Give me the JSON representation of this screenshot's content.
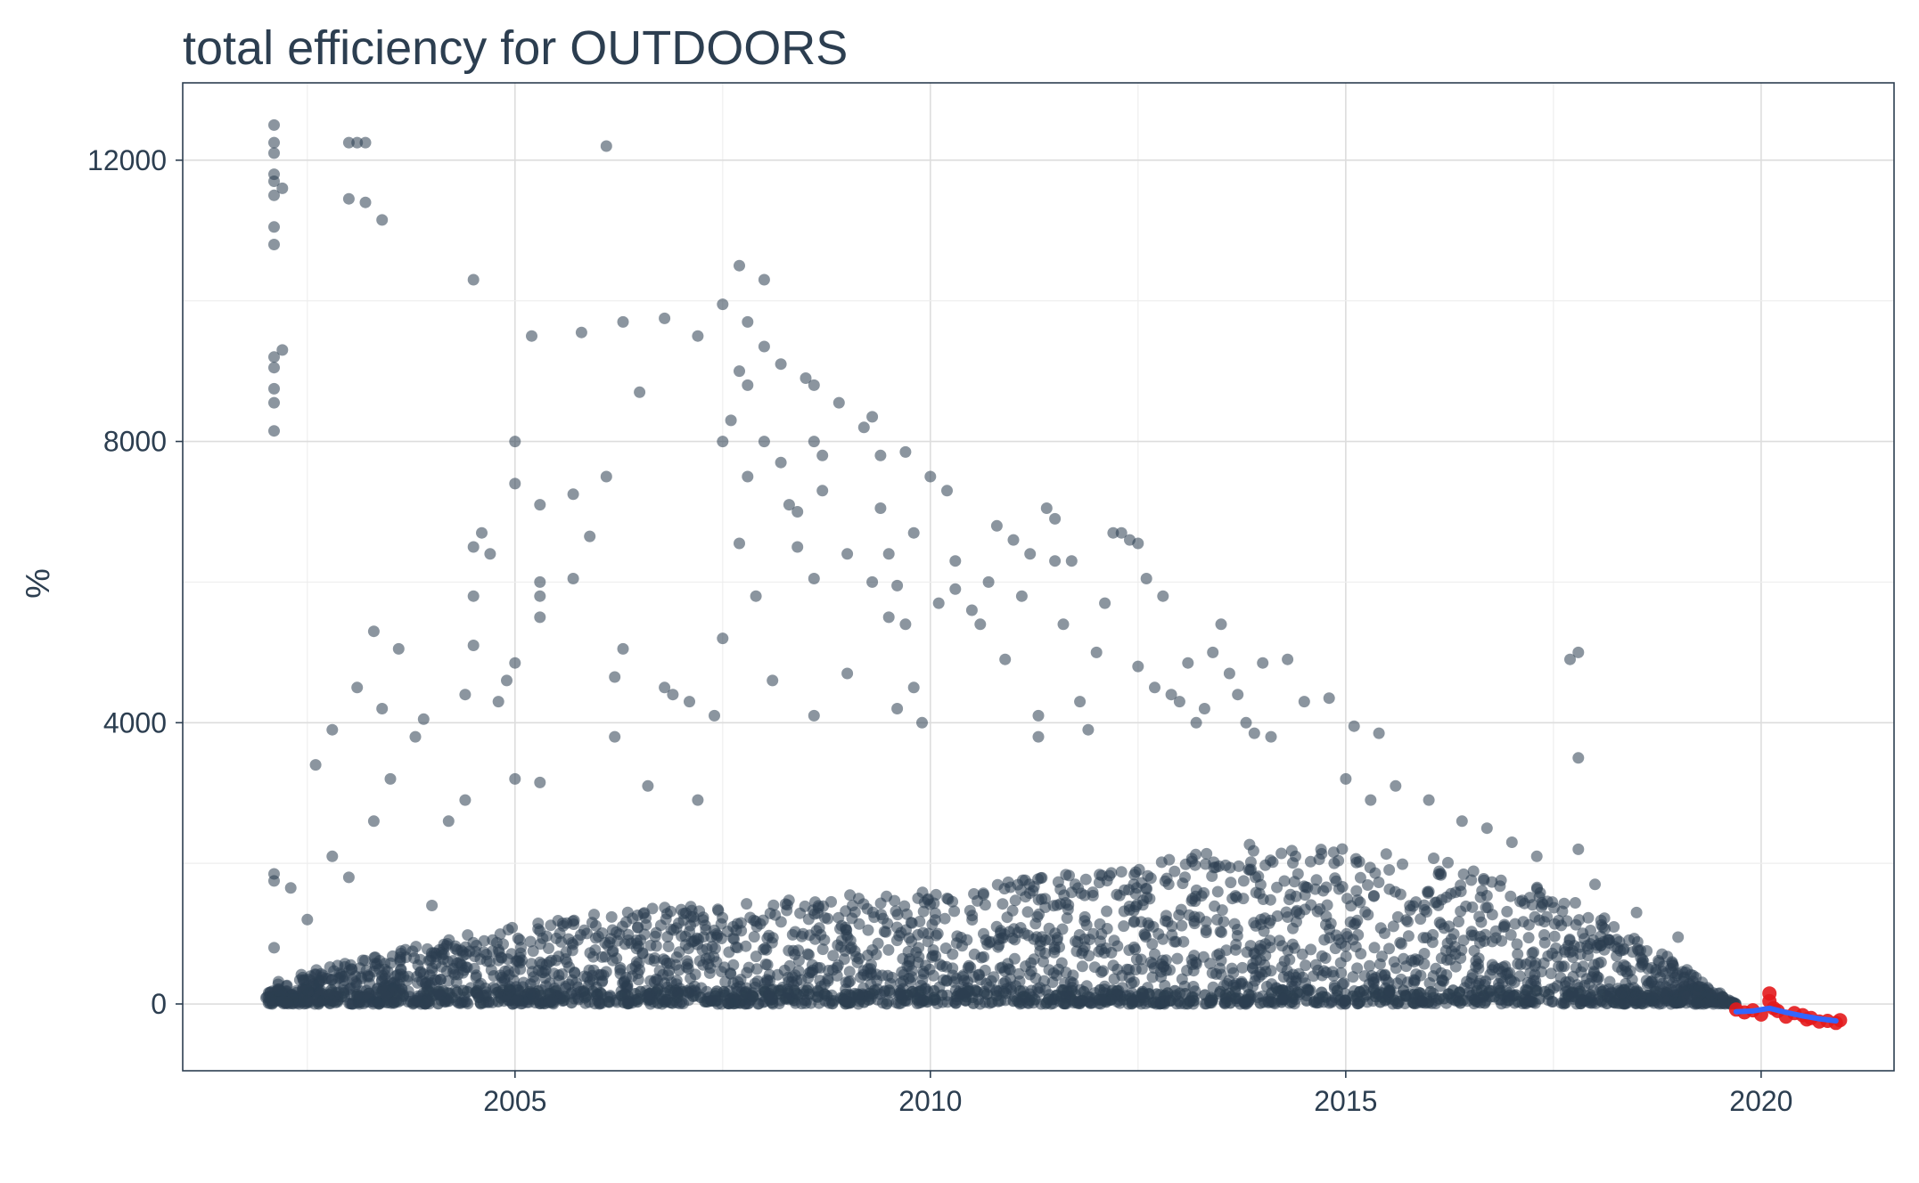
{
  "chart_data": {
    "type": "scatter",
    "title": "total efficiency for OUTDOORS",
    "xlabel": "",
    "ylabel": "%",
    "xlim": [
      2001.0,
      2021.6
    ],
    "ylim": [
      -950,
      13100
    ],
    "x_ticks": [
      2005,
      2010,
      2015,
      2020
    ],
    "y_ticks": [
      0,
      4000,
      8000,
      12000
    ],
    "grid": true,
    "legend": "none",
    "colors": {
      "points": "#2c3e50",
      "forecast_points": "#e31a1c",
      "trend_line": "#3366ff",
      "text": "#2c3e50"
    },
    "series": [
      {
        "role": "observed",
        "x_range": [
          2002.0,
          2019.7
        ],
        "dense_envelope_upper": [
          [
            2002.0,
            300
          ],
          [
            2004.0,
            900
          ],
          [
            2006.0,
            1300
          ],
          [
            2008.0,
            1500
          ],
          [
            2010.0,
            1600
          ],
          [
            2012.0,
            1900
          ],
          [
            2014.0,
            2300
          ],
          [
            2016.0,
            2100
          ],
          [
            2017.5,
            1600
          ],
          [
            2018.5,
            1000
          ],
          [
            2019.7,
            0
          ]
        ],
        "points": [
          [
            2002.1,
            12500
          ],
          [
            2002.1,
            12250
          ],
          [
            2002.1,
            12100
          ],
          [
            2002.1,
            11800
          ],
          [
            2002.1,
            11700
          ],
          [
            2002.1,
            11500
          ],
          [
            2002.1,
            11050
          ],
          [
            2002.1,
            10800
          ],
          [
            2002.2,
            11600
          ],
          [
            2002.1,
            9200
          ],
          [
            2002.1,
            9050
          ],
          [
            2002.1,
            8750
          ],
          [
            2002.1,
            8550
          ],
          [
            2002.1,
            8150
          ],
          [
            2002.2,
            9300
          ],
          [
            2003.0,
            12250
          ],
          [
            2003.1,
            12250
          ],
          [
            2003.2,
            12250
          ],
          [
            2003.0,
            11450
          ],
          [
            2003.2,
            11400
          ],
          [
            2003.4,
            11150
          ],
          [
            2006.1,
            12200
          ],
          [
            2004.5,
            10300
          ],
          [
            2005.2,
            9500
          ],
          [
            2005.8,
            9550
          ],
          [
            2006.3,
            9700
          ],
          [
            2006.8,
            9750
          ],
          [
            2007.2,
            9500
          ],
          [
            2007.5,
            9950
          ],
          [
            2007.7,
            10500
          ],
          [
            2008.0,
            10300
          ],
          [
            2007.8,
            9700
          ],
          [
            2002.1,
            1850
          ],
          [
            2002.1,
            1750
          ],
          [
            2002.3,
            1650
          ],
          [
            2002.1,
            800
          ],
          [
            2002.5,
            1200
          ],
          [
            2002.8,
            2100
          ],
          [
            2003.0,
            1800
          ],
          [
            2003.3,
            2600
          ],
          [
            2003.4,
            4200
          ],
          [
            2003.6,
            5050
          ],
          [
            2003.3,
            5300
          ],
          [
            2002.6,
            3400
          ],
          [
            2002.8,
            3900
          ],
          [
            2003.1,
            4500
          ],
          [
            2003.5,
            3200
          ],
          [
            2003.8,
            3800
          ],
          [
            2003.9,
            4050
          ],
          [
            2004.0,
            1400
          ],
          [
            2004.2,
            2600
          ],
          [
            2004.4,
            2900
          ],
          [
            2004.5,
            6500
          ],
          [
            2004.6,
            6700
          ],
          [
            2004.5,
            5100
          ],
          [
            2004.5,
            5800
          ],
          [
            2004.4,
            4400
          ],
          [
            2004.7,
            6400
          ],
          [
            2004.8,
            4300
          ],
          [
            2004.9,
            4600
          ],
          [
            2005.0,
            8000
          ],
          [
            2005.0,
            7400
          ],
          [
            2005.0,
            4850
          ],
          [
            2005.0,
            3200
          ],
          [
            2005.3,
            3150
          ],
          [
            2005.3,
            7100
          ],
          [
            2005.3,
            5800
          ],
          [
            2005.3,
            6000
          ],
          [
            2005.3,
            5500
          ],
          [
            2005.7,
            6050
          ],
          [
            2005.7,
            7250
          ],
          [
            2005.9,
            6650
          ],
          [
            2006.1,
            7500
          ],
          [
            2006.2,
            4650
          ],
          [
            2006.3,
            5050
          ],
          [
            2006.5,
            8700
          ],
          [
            2006.2,
            3800
          ],
          [
            2006.6,
            3100
          ],
          [
            2006.8,
            4500
          ],
          [
            2006.9,
            4400
          ],
          [
            2007.1,
            4300
          ],
          [
            2007.2,
            2900
          ],
          [
            2007.4,
            4100
          ],
          [
            2007.5,
            8000
          ],
          [
            2007.6,
            8300
          ],
          [
            2007.7,
            6550
          ],
          [
            2007.8,
            7500
          ],
          [
            2007.9,
            5800
          ],
          [
            2007.5,
            5200
          ],
          [
            2007.7,
            9000
          ],
          [
            2007.8,
            8800
          ],
          [
            2008.0,
            8000
          ],
          [
            2008.1,
            4600
          ],
          [
            2008.0,
            9350
          ],
          [
            2008.2,
            9100
          ],
          [
            2008.2,
            7700
          ],
          [
            2008.3,
            7100
          ],
          [
            2008.4,
            7000
          ],
          [
            2008.4,
            6500
          ],
          [
            2008.5,
            8900
          ],
          [
            2008.6,
            8800
          ],
          [
            2008.6,
            8000
          ],
          [
            2008.6,
            6050
          ],
          [
            2008.6,
            4100
          ],
          [
            2008.7,
            7800
          ],
          [
            2008.7,
            7300
          ],
          [
            2008.9,
            8550
          ],
          [
            2009.0,
            6400
          ],
          [
            2009.0,
            4700
          ],
          [
            2009.2,
            8200
          ],
          [
            2009.3,
            8350
          ],
          [
            2009.3,
            6000
          ],
          [
            2009.4,
            7800
          ],
          [
            2009.4,
            7050
          ],
          [
            2009.5,
            6400
          ],
          [
            2009.6,
            5950
          ],
          [
            2009.7,
            7850
          ],
          [
            2009.7,
            5400
          ],
          [
            2009.8,
            6700
          ],
          [
            2009.8,
            4500
          ],
          [
            2009.9,
            4000
          ],
          [
            2009.5,
            5500
          ],
          [
            2009.6,
            4200
          ],
          [
            2010.0,
            7500
          ],
          [
            2010.1,
            5700
          ],
          [
            2010.2,
            7300
          ],
          [
            2010.3,
            6300
          ],
          [
            2010.3,
            5900
          ],
          [
            2010.5,
            5600
          ],
          [
            2010.6,
            5400
          ],
          [
            2010.7,
            6000
          ],
          [
            2010.8,
            6800
          ],
          [
            2010.9,
            4900
          ],
          [
            2011.0,
            6600
          ],
          [
            2011.1,
            5800
          ],
          [
            2011.2,
            6400
          ],
          [
            2011.3,
            4100
          ],
          [
            2011.3,
            3800
          ],
          [
            2011.4,
            7050
          ],
          [
            2011.5,
            6900
          ],
          [
            2011.5,
            6300
          ],
          [
            2011.6,
            5400
          ],
          [
            2011.7,
            6300
          ],
          [
            2011.8,
            4300
          ],
          [
            2011.9,
            3900
          ],
          [
            2012.0,
            5000
          ],
          [
            2012.1,
            5700
          ],
          [
            2012.2,
            6700
          ],
          [
            2012.3,
            6700
          ],
          [
            2012.4,
            6600
          ],
          [
            2012.5,
            6550
          ],
          [
            2012.5,
            4800
          ],
          [
            2012.6,
            6050
          ],
          [
            2012.7,
            4500
          ],
          [
            2012.8,
            5800
          ],
          [
            2012.9,
            4400
          ],
          [
            2013.0,
            4300
          ],
          [
            2013.1,
            4850
          ],
          [
            2013.2,
            4000
          ],
          [
            2013.3,
            4200
          ],
          [
            2013.4,
            5000
          ],
          [
            2013.5,
            5400
          ],
          [
            2013.6,
            4700
          ],
          [
            2013.7,
            4400
          ],
          [
            2013.8,
            4000
          ],
          [
            2013.9,
            3850
          ],
          [
            2014.0,
            4850
          ],
          [
            2014.1,
            3800
          ],
          [
            2014.3,
            4900
          ],
          [
            2014.5,
            4300
          ],
          [
            2014.8,
            4350
          ],
          [
            2015.1,
            3950
          ],
          [
            2015.4,
            3850
          ],
          [
            2015.0,
            3200
          ],
          [
            2015.3,
            2900
          ],
          [
            2015.6,
            3100
          ],
          [
            2016.0,
            2900
          ],
          [
            2016.4,
            2600
          ],
          [
            2016.7,
            2500
          ],
          [
            2017.0,
            2300
          ],
          [
            2017.3,
            2100
          ],
          [
            2017.7,
            4900
          ],
          [
            2017.8,
            5000
          ],
          [
            2017.8,
            3500
          ],
          [
            2017.8,
            2200
          ],
          [
            2018.0,
            1700
          ],
          [
            2018.5,
            1300
          ],
          [
            2019.0,
            950
          ]
        ]
      },
      {
        "role": "forecast",
        "points": [
          [
            2019.7,
            -80
          ],
          [
            2019.8,
            -120
          ],
          [
            2019.9,
            -90
          ],
          [
            2020.0,
            -150
          ],
          [
            2020.1,
            150
          ],
          [
            2020.1,
            40
          ],
          [
            2020.15,
            -60
          ],
          [
            2020.2,
            -100
          ],
          [
            2020.3,
            -180
          ],
          [
            2020.4,
            -130
          ],
          [
            2020.5,
            -160
          ],
          [
            2020.55,
            -220
          ],
          [
            2020.6,
            -200
          ],
          [
            2020.7,
            -250
          ],
          [
            2020.8,
            -240
          ],
          [
            2020.9,
            -270
          ],
          [
            2020.95,
            -230
          ]
        ]
      },
      {
        "role": "trend",
        "points": [
          [
            2019.7,
            -110
          ],
          [
            2019.9,
            -100
          ],
          [
            2020.1,
            -60
          ],
          [
            2020.3,
            -120
          ],
          [
            2020.5,
            -170
          ],
          [
            2020.7,
            -210
          ],
          [
            2020.9,
            -240
          ]
        ]
      }
    ]
  }
}
